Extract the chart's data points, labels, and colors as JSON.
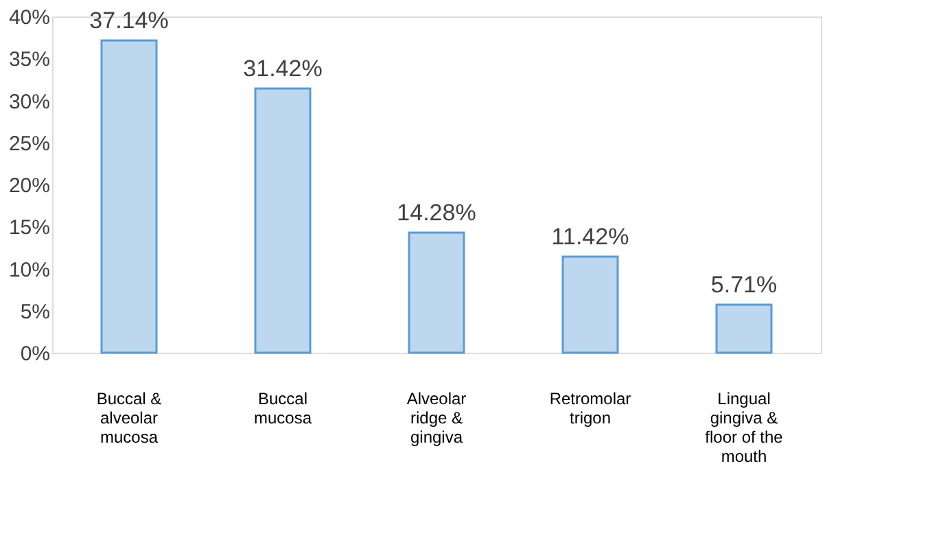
{
  "chart_data": {
    "type": "bar",
    "categories": [
      "Buccal & alveolar mucosa",
      "Buccal mucosa",
      "Alveolar ridge & gingiva",
      "Retromolar trigon",
      "Lingual gingiva & floor of the mouth"
    ],
    "values": [
      37.14,
      31.42,
      14.28,
      11.42,
      5.71
    ],
    "value_labels": [
      "37.14%",
      "31.42%",
      "14.28%",
      "11.42%",
      "5.71%"
    ],
    "color": "#bdd7ee",
    "ylim": [
      0,
      40
    ],
    "yticks": [
      {
        "value": 0,
        "label": "0%"
      },
      {
        "value": 5,
        "label": "5%"
      },
      {
        "value": 10,
        "label": "10%"
      },
      {
        "value": 15,
        "label": "15%"
      },
      {
        "value": 20,
        "label": "20%"
      },
      {
        "value": 25,
        "label": "25%"
      },
      {
        "value": 30,
        "label": "30%"
      },
      {
        "value": 35,
        "label": "35%"
      },
      {
        "value": 40,
        "label": "40%"
      }
    ],
    "grid": false
  }
}
